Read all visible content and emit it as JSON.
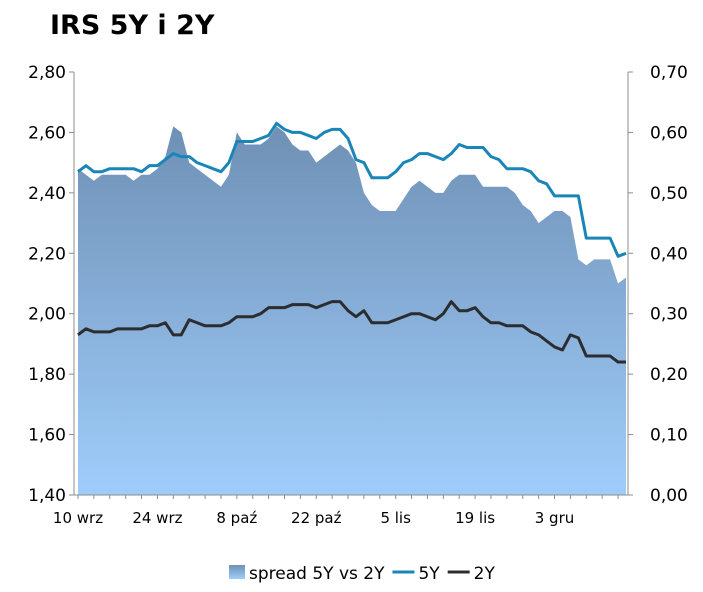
{
  "chart_data": {
    "type": "area",
    "title": "IRS 5Y i 2Y",
    "x_tick_labels": [
      "10 wrz",
      "24 wrz",
      "8 paź",
      "22 paź",
      "5 lis",
      "19 lis",
      "3 gru"
    ],
    "y_left": {
      "ylim": [
        1.4,
        2.8
      ],
      "ticks": [
        "1,40",
        "1,60",
        "1,80",
        "2,00",
        "2,20",
        "2,40",
        "2,60",
        "2,80"
      ]
    },
    "y_right": {
      "ylim": [
        0.0,
        0.7
      ],
      "ticks": [
        "0,00",
        "0,10",
        "0,20",
        "0,30",
        "0,40",
        "0,50",
        "0,60",
        "0,70"
      ]
    },
    "grid": false,
    "legend_position": "bottom",
    "colors": {
      "spread_top": "#6f90b5",
      "spread_bottom": "#9fcdfb",
      "line_5y": "#1a86b8",
      "line_2y": "#2b2d30",
      "axis": "#8c8c8c"
    },
    "series": [
      {
        "name": "spread 5Y vs 2Y",
        "axis": "right",
        "kind": "area",
        "values": [
          0.54,
          0.53,
          0.52,
          0.53,
          0.53,
          0.53,
          0.53,
          0.52,
          0.53,
          0.53,
          0.54,
          0.56,
          0.61,
          0.6,
          0.55,
          0.54,
          0.53,
          0.52,
          0.51,
          0.53,
          0.6,
          0.58,
          0.58,
          0.58,
          0.59,
          0.61,
          0.6,
          0.58,
          0.57,
          0.57,
          0.55,
          0.56,
          0.57,
          0.58,
          0.57,
          0.55,
          0.5,
          0.48,
          0.47,
          0.47,
          0.47,
          0.49,
          0.51,
          0.52,
          0.51,
          0.5,
          0.5,
          0.52,
          0.53,
          0.53,
          0.53,
          0.51,
          0.51,
          0.51,
          0.51,
          0.5,
          0.48,
          0.47,
          0.45,
          0.46,
          0.47,
          0.47,
          0.46,
          0.39,
          0.38,
          0.39,
          0.39,
          0.39,
          0.35,
          0.36
        ]
      },
      {
        "name": "5Y",
        "axis": "left",
        "kind": "line",
        "values": [
          2.47,
          2.49,
          2.47,
          2.47,
          2.48,
          2.48,
          2.48,
          2.48,
          2.47,
          2.49,
          2.49,
          2.51,
          2.53,
          2.52,
          2.52,
          2.5,
          2.49,
          2.48,
          2.47,
          2.5,
          2.57,
          2.57,
          2.57,
          2.58,
          2.59,
          2.63,
          2.61,
          2.6,
          2.6,
          2.59,
          2.58,
          2.6,
          2.61,
          2.61,
          2.58,
          2.51,
          2.5,
          2.45,
          2.45,
          2.45,
          2.47,
          2.5,
          2.51,
          2.53,
          2.53,
          2.52,
          2.51,
          2.53,
          2.56,
          2.55,
          2.55,
          2.55,
          2.52,
          2.51,
          2.48,
          2.48,
          2.48,
          2.47,
          2.44,
          2.43,
          2.39,
          2.39,
          2.39,
          2.39,
          2.25,
          2.25,
          2.25,
          2.25,
          2.19,
          2.2
        ]
      },
      {
        "name": "2Y",
        "axis": "left",
        "kind": "line",
        "values": [
          1.93,
          1.95,
          1.94,
          1.94,
          1.94,
          1.95,
          1.95,
          1.95,
          1.95,
          1.96,
          1.96,
          1.97,
          1.93,
          1.93,
          1.98,
          1.97,
          1.96,
          1.96,
          1.96,
          1.97,
          1.99,
          1.99,
          1.99,
          2.0,
          2.02,
          2.02,
          2.02,
          2.03,
          2.03,
          2.03,
          2.02,
          2.03,
          2.04,
          2.04,
          2.01,
          1.99,
          2.01,
          1.97,
          1.97,
          1.97,
          1.98,
          1.99,
          2.0,
          2.0,
          1.99,
          1.98,
          2.0,
          2.04,
          2.01,
          2.01,
          2.02,
          1.99,
          1.97,
          1.97,
          1.96,
          1.96,
          1.96,
          1.94,
          1.93,
          1.91,
          1.89,
          1.88,
          1.93,
          1.92,
          1.86,
          1.86,
          1.86,
          1.86,
          1.84,
          1.84
        ]
      }
    ]
  }
}
